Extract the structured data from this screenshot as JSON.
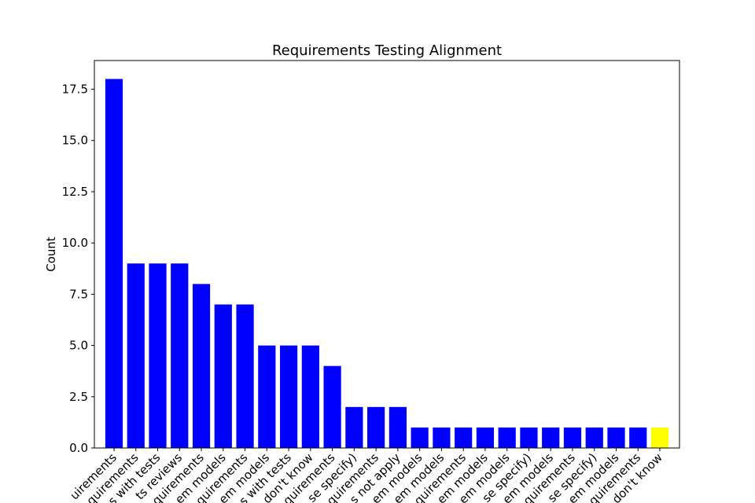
{
  "chart_data": {
    "type": "bar",
    "title": "Requirements Testing Alignment",
    "xlabel": "",
    "ylabel": "Count",
    "ylim": [
      0,
      18.9
    ],
    "yticks": [
      "0.0",
      "2.5",
      "5.0",
      "7.5",
      "10.0",
      "12.5",
      "15.0",
      "17.5"
    ],
    "grid": false,
    "categories": [
      "uirements",
      "quirements",
      "s with tests",
      "ts reviews",
      "quirements",
      "em models",
      "quirements",
      "em models",
      "s with tests",
      "don't know",
      "quirements",
      "se specify)",
      "quirements",
      "s not apply",
      "em models",
      "em models",
      "quirements",
      "em models",
      "em models",
      "se specify)",
      "em models",
      "quirements",
      "se specify)",
      "em models",
      "quirements",
      "don't know"
    ],
    "values": [
      18,
      9,
      9,
      9,
      8,
      7,
      7,
      5,
      5,
      5,
      4,
      2,
      2,
      2,
      1,
      1,
      1,
      1,
      1,
      1,
      1,
      1,
      1,
      1,
      1,
      1
    ],
    "colors": [
      "#0000ff",
      "#0000ff",
      "#0000ff",
      "#0000ff",
      "#0000ff",
      "#0000ff",
      "#0000ff",
      "#0000ff",
      "#0000ff",
      "#0000ff",
      "#0000ff",
      "#0000ff",
      "#0000ff",
      "#0000ff",
      "#0000ff",
      "#0000ff",
      "#0000ff",
      "#0000ff",
      "#0000ff",
      "#0000ff",
      "#0000ff",
      "#0000ff",
      "#0000ff",
      "#0000ff",
      "#0000ff",
      "#ffff00"
    ]
  }
}
